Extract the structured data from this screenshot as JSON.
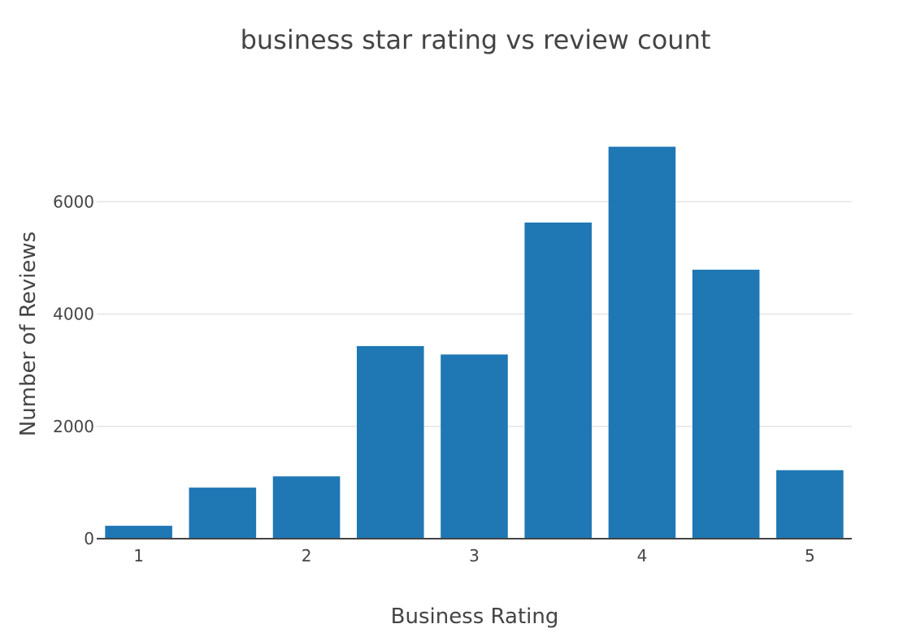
{
  "chart_data": {
    "type": "bar",
    "title": "business star rating vs review count",
    "xlabel": "Business Rating",
    "ylabel": "Number of Reviews",
    "x": [
      1,
      1.5,
      2,
      2.5,
      3,
      3.5,
      4,
      4.5,
      5
    ],
    "values": [
      230,
      910,
      1110,
      3430,
      3280,
      5630,
      6980,
      4790,
      1220
    ],
    "xticks": [
      "1",
      "2",
      "3",
      "4",
      "5"
    ],
    "xtick_values": [
      1,
      2,
      3,
      4,
      5
    ],
    "yticks": [
      "0",
      "2000",
      "4000",
      "6000"
    ],
    "ytick_values": [
      0,
      2000,
      4000,
      6000
    ],
    "xlim": [
      0.75,
      5.25
    ],
    "ylim": [
      0,
      7350
    ],
    "bar_color": "#1f77b4",
    "grid": true,
    "legend": false
  }
}
